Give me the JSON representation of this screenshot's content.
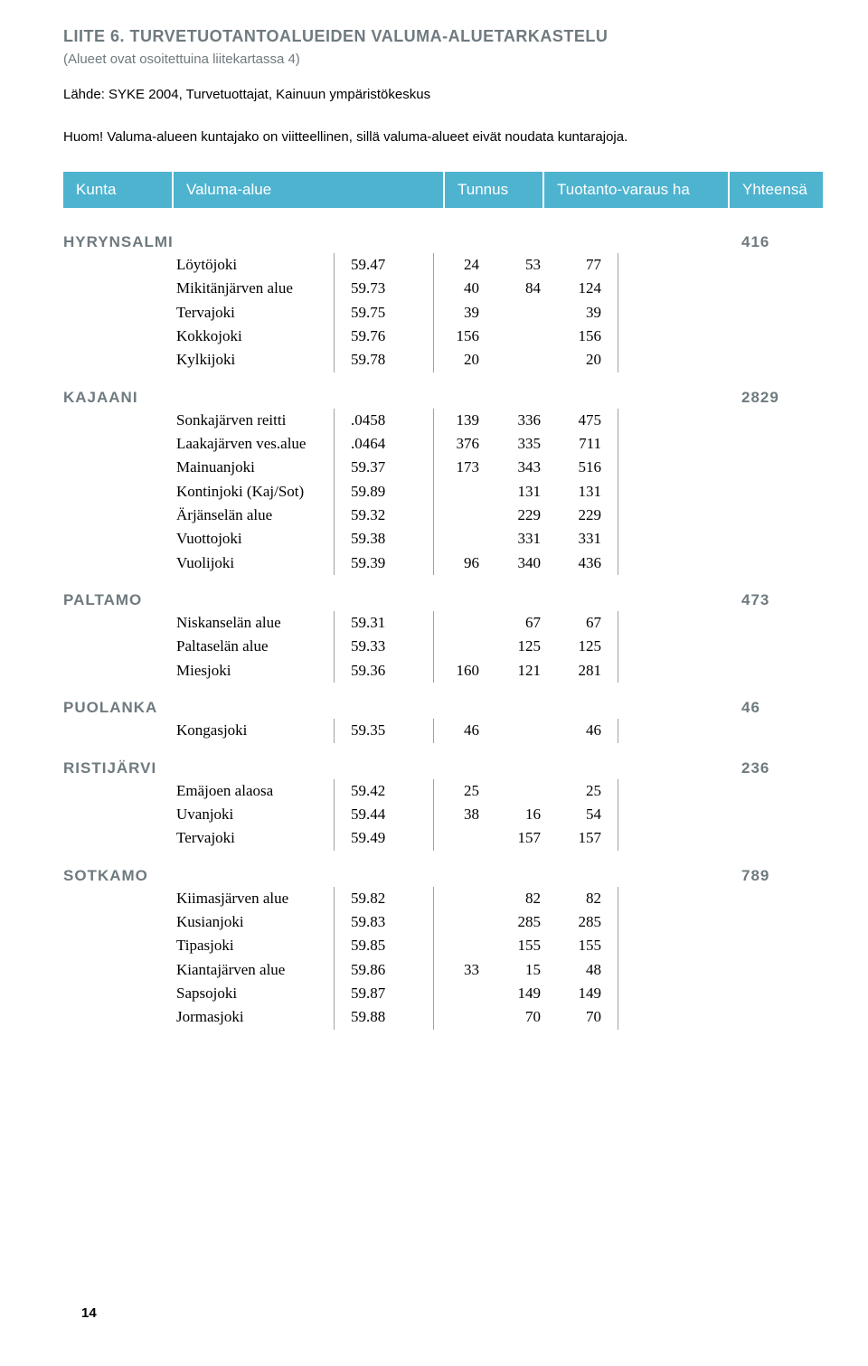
{
  "title": "LIITE 6. TURVETUOTANTOALUEIDEN VALUMA-ALUETARKASTELU",
  "subtitle": "(Alueet ovat osoitettuina liitekartassa 4)",
  "source": "Lähde: SYKE 2004, Turvetuottajat, Kainuun ympäristökeskus",
  "note": "Huom! Valuma-alueen kuntajako on viitteellinen, sillä valuma-alueet eivät noudata kuntarajoja.",
  "headers": {
    "kunta": "Kunta",
    "valuma": "Valuma-alue",
    "tunnus": "Tunnus",
    "tuotanto": "Tuotanto-varaus ha",
    "yhteensa": "Yhteensä"
  },
  "colors": {
    "header_bg": "#4eb3cf",
    "header_fg": "#ffffff",
    "muted": "#6f7a7f",
    "border": "#9aa4a8",
    "bg": "#ffffff"
  },
  "sections": [
    {
      "name": "HYRYNSALMI",
      "total": "416",
      "rows": [
        {
          "valuma": "Löytöjoki",
          "tunnus": "59.47",
          "a": "24",
          "b": "53",
          "c": "77"
        },
        {
          "valuma": "Mikitänjärven alue",
          "tunnus": "59.73",
          "a": "40",
          "b": "84",
          "c": "124"
        },
        {
          "valuma": "Tervajoki",
          "tunnus": "59.75",
          "a": "39",
          "b": "",
          "c": "39"
        },
        {
          "valuma": "Kokkojoki",
          "tunnus": "59.76",
          "a": "156",
          "b": "",
          "c": "156"
        },
        {
          "valuma": "Kylkijoki",
          "tunnus": "59.78",
          "a": "20",
          "b": "",
          "c": "20"
        }
      ]
    },
    {
      "name": "KAJAANI",
      "total": "2829",
      "rows": [
        {
          "valuma": "Sonkajärven reitti",
          "tunnus": ".0458",
          "a": "139",
          "b": "336",
          "c": "475"
        },
        {
          "valuma": "Laakajärven ves.alue",
          "tunnus": ".0464",
          "a": "376",
          "b": "335",
          "c": "711"
        },
        {
          "valuma": "Mainuanjoki",
          "tunnus": "59.37",
          "a": "173",
          "b": "343",
          "c": "516"
        },
        {
          "valuma": "Kontinjoki (Kaj/Sot)",
          "tunnus": "59.89",
          "a": "",
          "b": "131",
          "c": "131"
        },
        {
          "valuma": "Ärjänselän alue",
          "tunnus": "59.32",
          "a": "",
          "b": "229",
          "c": "229"
        },
        {
          "valuma": "Vuottojoki",
          "tunnus": "59.38",
          "a": "",
          "b": "331",
          "c": "331"
        },
        {
          "valuma": "Vuolijoki",
          "tunnus": "59.39",
          "a": "96",
          "b": "340",
          "c": "436"
        }
      ]
    },
    {
      "name": "PALTAMO",
      "total": "473",
      "rows": [
        {
          "valuma": "Niskanselän alue",
          "tunnus": "59.31",
          "a": "",
          "b": "67",
          "c": "67"
        },
        {
          "valuma": "Paltaselän alue",
          "tunnus": "59.33",
          "a": "",
          "b": "125",
          "c": "125"
        },
        {
          "valuma": "Miesjoki",
          "tunnus": "59.36",
          "a": "160",
          "b": "121",
          "c": "281"
        }
      ]
    },
    {
      "name": "PUOLANKA",
      "total": "46",
      "rows": [
        {
          "valuma": "Kongasjoki",
          "tunnus": "59.35",
          "a": "46",
          "b": "",
          "c": "46"
        }
      ]
    },
    {
      "name": "RISTIJÄRVI",
      "total": "236",
      "rows": [
        {
          "valuma": "Emäjoen alaosa",
          "tunnus": "59.42",
          "a": "25",
          "b": "",
          "c": "25"
        },
        {
          "valuma": "Uvanjoki",
          "tunnus": "59.44",
          "a": "38",
          "b": "16",
          "c": "54"
        },
        {
          "valuma": "Tervajoki",
          "tunnus": "59.49",
          "a": "",
          "b": "157",
          "c": "157"
        }
      ]
    },
    {
      "name": "SOTKAMO",
      "total": "789",
      "rows": [
        {
          "valuma": "Kiimasjärven alue",
          "tunnus": "59.82",
          "a": "",
          "b": "82",
          "c": "82"
        },
        {
          "valuma": "Kusianjoki",
          "tunnus": "59.83",
          "a": "",
          "b": "285",
          "c": "285"
        },
        {
          "valuma": "Tipasjoki",
          "tunnus": "59.85",
          "a": "",
          "b": "155",
          "c": "155"
        },
        {
          "valuma": "Kiantajärven alue",
          "tunnus": "59.86",
          "a": "33",
          "b": "15",
          "c": "48"
        },
        {
          "valuma": "Sapsojoki",
          "tunnus": "59.87",
          "a": "",
          "b": "149",
          "c": "149"
        },
        {
          "valuma": "Jormasjoki",
          "tunnus": "59.88",
          "a": "",
          "b": "70",
          "c": "70"
        }
      ]
    }
  ],
  "page_number": "14"
}
